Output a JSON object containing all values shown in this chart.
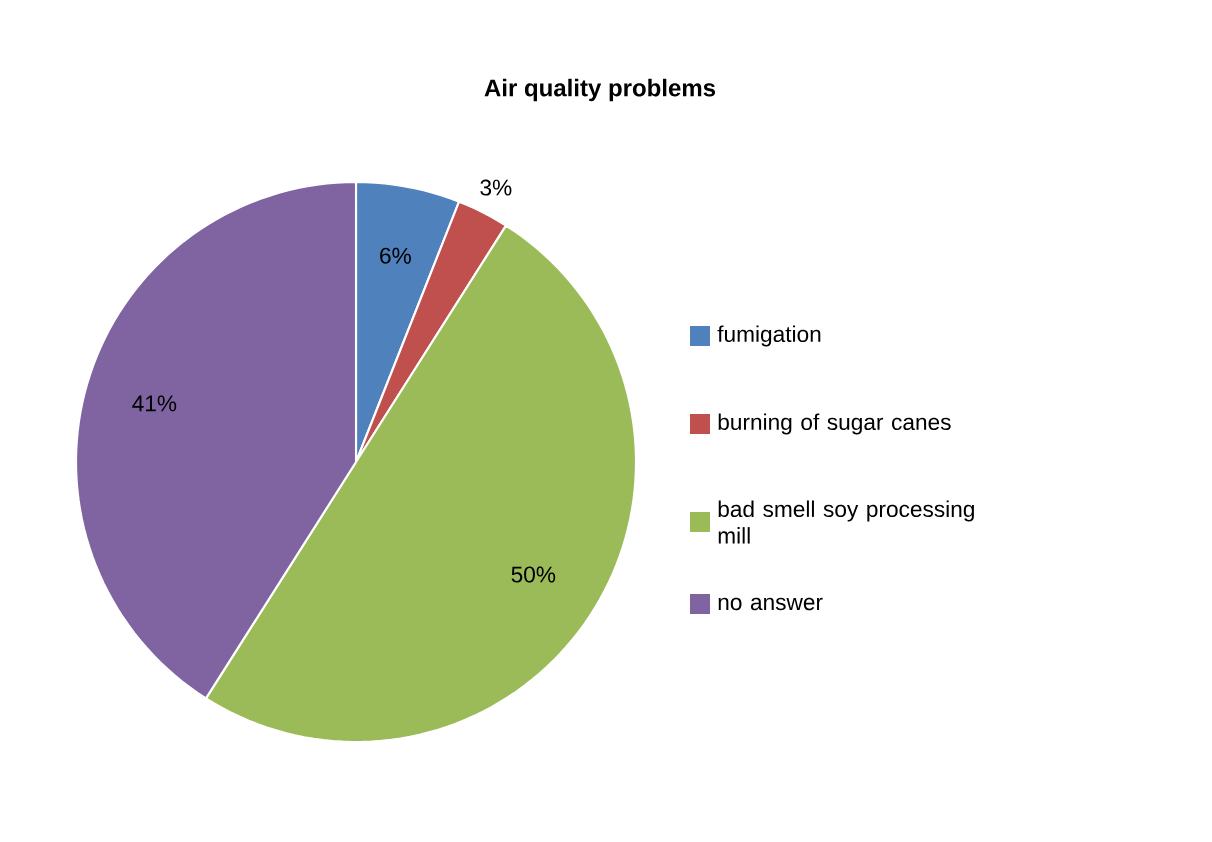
{
  "chart_data": {
    "type": "pie",
    "title": "Air quality problems",
    "categories": [
      "fumigation",
      "burning of sugar canes",
      "bad smell soy processing mill",
      "no answer"
    ],
    "values": [
      6,
      3,
      50,
      41
    ],
    "value_labels": [
      "6%",
      "3%",
      "50%",
      "41%"
    ],
    "colors": [
      "#4f81bd",
      "#c0504d",
      "#9bbb59",
      "#8064a2"
    ],
    "legend": "right"
  }
}
